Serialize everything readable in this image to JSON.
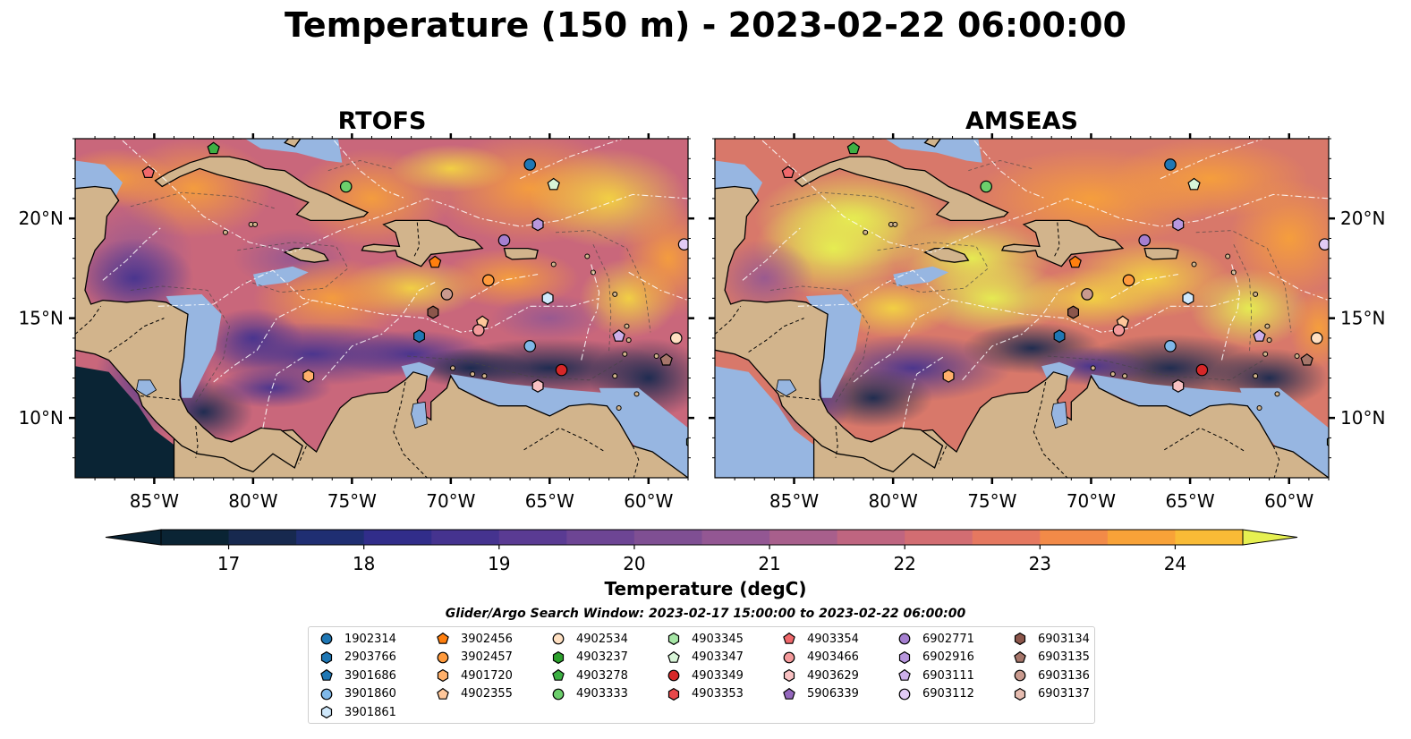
{
  "title": "Temperature (150 m) - 2023-02-22 06:00:00",
  "panels": [
    {
      "title": "RTOFS",
      "variant": "rtofs"
    },
    {
      "title": "AMSEAS",
      "variant": "amseas"
    }
  ],
  "chart_data": {
    "type": "heatmap",
    "variable": "Temperature (150 m)",
    "xlim": [
      -89,
      -58
    ],
    "ylim": [
      7,
      24
    ],
    "x_ticks": [
      {
        "value": -85,
        "label": "85°W"
      },
      {
        "value": -80,
        "label": "80°W"
      },
      {
        "value": -75,
        "label": "75°W"
      },
      {
        "value": -70,
        "label": "70°W"
      },
      {
        "value": -65,
        "label": "65°W"
      },
      {
        "value": -60,
        "label": "60°W"
      }
    ],
    "y_ticks": [
      {
        "value": 10,
        "label": "10°N"
      },
      {
        "value": 15,
        "label": "15°N"
      },
      {
        "value": 20,
        "label": "20°N"
      }
    ],
    "colorbar": {
      "label": "Temperature (degC)",
      "vmin": 16.5,
      "vmax": 24.5,
      "step": 0.5,
      "extend": "both",
      "ticks": [
        17,
        18,
        19,
        20,
        21,
        22,
        23,
        24
      ],
      "colors": [
        "#0a2434",
        "#17294f",
        "#1f2e72",
        "#312d8a",
        "#45338f",
        "#5a3b93",
        "#6d4594",
        "#7f4f93",
        "#935793",
        "#a85f8c",
        "#bf6580",
        "#d26d72",
        "#e57860",
        "#f28a48",
        "#f8a238",
        "#f9bb36",
        "#f3d442",
        "#e6f051"
      ],
      "low_color": "#0a2434",
      "high_color": "#e6f051"
    },
    "floats": [
      {
        "id": "1902314",
        "marker": "circle",
        "color": "#1f77b4",
        "lon": -66,
        "lat": 22.7
      },
      {
        "id": "2903766",
        "marker": "hexagon",
        "color": "#1f77b4",
        "lon": -71.6,
        "lat": 14.1
      },
      {
        "id": "3901686",
        "marker": "pentagon",
        "color": "#1f77b4",
        "lon": null,
        "lat": null
      },
      {
        "id": "3901860",
        "marker": "circle",
        "color": "#7fb8e8",
        "lon": -66,
        "lat": 13.6
      },
      {
        "id": "3901861",
        "marker": "hexagon",
        "color": "#cfe8fb",
        "lon": -65.1,
        "lat": 16
      },
      {
        "id": "3902456",
        "marker": "pentagon",
        "color": "#ff7f0e",
        "lon": -70.8,
        "lat": 17.8
      },
      {
        "id": "3902457",
        "marker": "circle",
        "color": "#ff9a3c",
        "lon": -68.1,
        "lat": 16.9
      },
      {
        "id": "4901720",
        "marker": "hexagon",
        "color": "#ffb06b",
        "lon": -77.2,
        "lat": 12.1
      },
      {
        "id": "4902355",
        "marker": "pentagon",
        "color": "#ffc79a",
        "lon": -68.4,
        "lat": 14.8
      },
      {
        "id": "4902534",
        "marker": "circle",
        "color": "#ffe0c2",
        "lon": -58.6,
        "lat": 14
      },
      {
        "id": "4903237",
        "marker": "hexagon",
        "color": "#2ca02c",
        "lon": null,
        "lat": null
      },
      {
        "id": "4903278",
        "marker": "pentagon",
        "color": "#3cb043",
        "lon": -82,
        "lat": 23.5
      },
      {
        "id": "4903333",
        "marker": "circle",
        "color": "#6ccf6c",
        "lon": -75.3,
        "lat": 21.6
      },
      {
        "id": "4903345",
        "marker": "hexagon",
        "color": "#a6e6a6",
        "lon": -57.8,
        "lat": 8.8
      },
      {
        "id": "4903347",
        "marker": "pentagon",
        "color": "#d8f5d8",
        "lon": -64.8,
        "lat": 21.7
      },
      {
        "id": "4903349",
        "marker": "circle",
        "color": "#d62728",
        "lon": -64.4,
        "lat": 12.4
      },
      {
        "id": "4903353",
        "marker": "hexagon",
        "color": "#e8484a",
        "lon": null,
        "lat": null
      },
      {
        "id": "4903354",
        "marker": "pentagon",
        "color": "#f0686b",
        "lon": -85.3,
        "lat": 22.3
      },
      {
        "id": "4903466",
        "marker": "circle",
        "color": "#f49a9b",
        "lon": -68.6,
        "lat": 14.4
      },
      {
        "id": "4903629",
        "marker": "hexagon",
        "color": "#f8c1c2",
        "lon": -65.6,
        "lat": 11.6
      },
      {
        "id": "5906339",
        "marker": "pentagon",
        "color": "#9467bd",
        "lon": null,
        "lat": null
      },
      {
        "id": "6902771",
        "marker": "circle",
        "color": "#a57fd0",
        "lon": -67.3,
        "lat": 18.9
      },
      {
        "id": "6902916",
        "marker": "hexagon",
        "color": "#b897de",
        "lon": -65.6,
        "lat": 19.7
      },
      {
        "id": "6903111",
        "marker": "pentagon",
        "color": "#cdb0ea",
        "lon": -61.5,
        "lat": 14.1
      },
      {
        "id": "6903112",
        "marker": "circle",
        "color": "#e2ccf5",
        "lon": -58.2,
        "lat": 18.7
      },
      {
        "id": "6903134",
        "marker": "hexagon",
        "color": "#8c564b",
        "lon": -70.9,
        "lat": 15.3
      },
      {
        "id": "6903135",
        "marker": "pentagon",
        "color": "#a6766a",
        "lon": -59.1,
        "lat": 12.9
      },
      {
        "id": "6903136",
        "marker": "circle",
        "color": "#c99a8e",
        "lon": -70.2,
        "lat": 16.2
      },
      {
        "id": "6903137",
        "marker": "hexagon",
        "color": "#e6bcb0",
        "lon": null,
        "lat": null
      }
    ]
  },
  "legend": {
    "title": "Glider/Argo Search Window: 2023-02-17 15:00:00 to 2023-02-22 06:00:00"
  },
  "colors": {
    "land": "#d2b48c",
    "shelf": "#97b6e1",
    "coast": "#000000"
  }
}
